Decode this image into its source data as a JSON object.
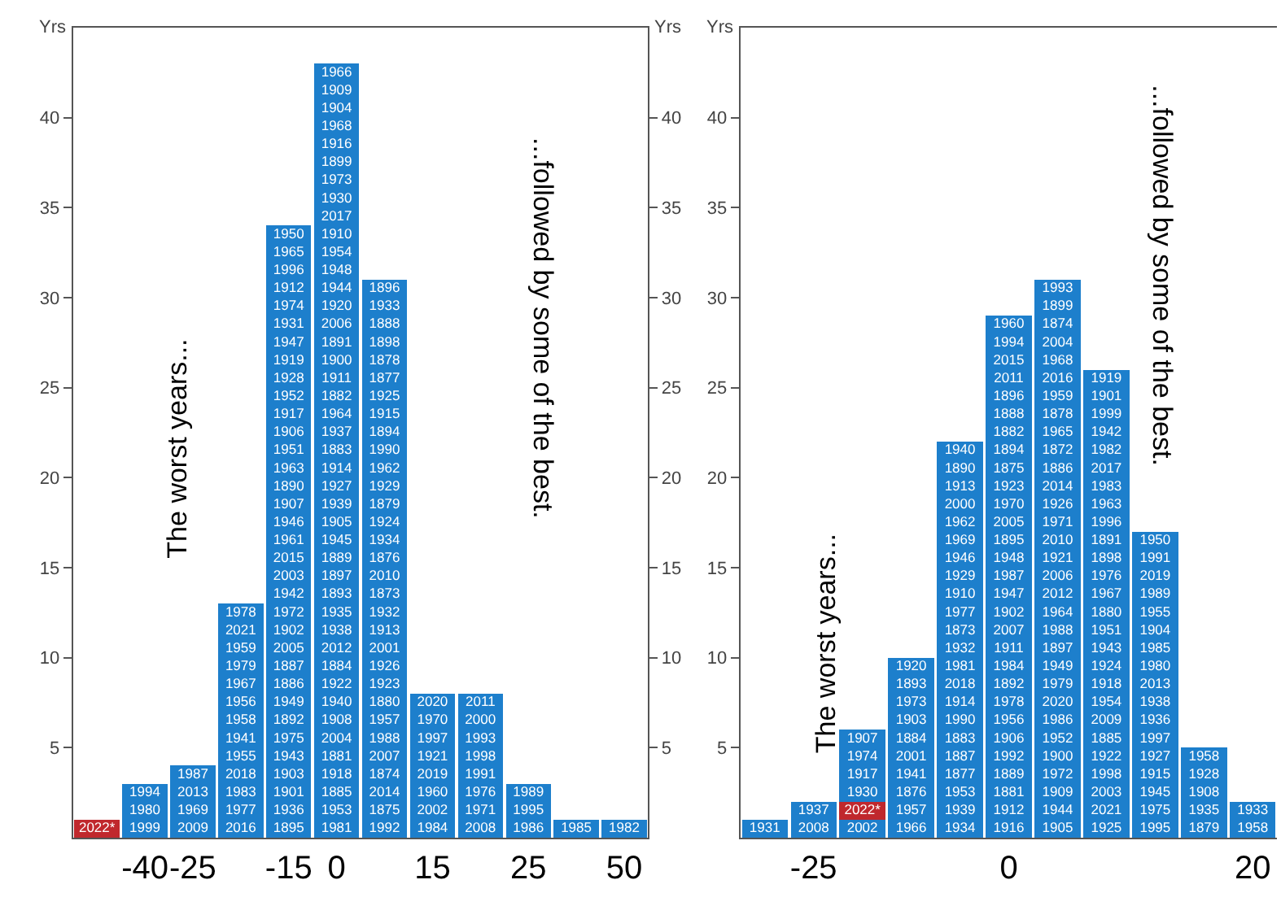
{
  "chart_data": [
    {
      "type": "bar",
      "stacked": true,
      "ylabel": "Yrs",
      "y2label": "Yrs",
      "ylim": [
        0,
        45
      ],
      "yticks": [
        5,
        10,
        15,
        20,
        25,
        30,
        35,
        40
      ],
      "y2lim": [
        0,
        45
      ],
      "y2ticks": [
        5,
        10,
        15,
        20,
        25,
        30,
        35,
        40
      ],
      "categories": [
        null,
        "-40",
        "-25",
        null,
        "-15",
        "0",
        null,
        "15",
        null,
        "25",
        null,
        "50"
      ],
      "series": [
        {
          "color": "#c0282d",
          "values": [
            1,
            null,
            null,
            null,
            null,
            null,
            null,
            null,
            null,
            null,
            null,
            null
          ]
        },
        {
          "color": "#1d7fcc",
          "values": [
            null,
            3,
            4,
            13,
            34,
            43,
            31,
            8,
            8,
            3,
            1,
            1
          ]
        }
      ],
      "annotations": [
        "The worst years...",
        "...followed by some of the best.",
        "2022*",
        "1994\n1980\n1999",
        "1987\n2013\n1969\n2009",
        "1978\n2021\n1959\n1979\n1967\n1956\n1958\n1941\n1955\n2018\n1983\n1977\n2016",
        "1950\n1965\n1996\n1912\n1974\n1931\n1947\n1919\n1928\n1952\n1917\n1906\n1951\n1963\n1890\n1907\n1946\n1961\n2015\n2003\n1942\n1972\n1902\n2005\n1887\n1886\n1949\n1892\n1975\n1943\n1903\n1901\n1936\n1895",
        "1966\n1909\n1904\n1968\n1916\n1899\n1973\n1930\n2017\n1910\n1954\n1948\n1944\n1920\n2006\n1891\n1900\n1911\n1882\n1964\n1937\n1883\n1914\n1927\n1939\n1905\n1945\n1889\n1897\n1893\n1935\n1938\n2012\n1884\n1922\n1940\n1908\n2004\n1881\n1918\n1885\n1953\n1981",
        "1896\n1933\n1888\n1898\n1878\n1877\n1925\n1915\n1894\n1990\n1962\n1929\n1879\n1924\n1934\n1876\n2010\n1873\n1932\n1913\n2001\n1926\n1923\n1880\n1957\n1988\n2007\n1874\n2014\n1875\n1992",
        "2020\n1970\n1997\n1921\n2019\n1960\n2002\n1984",
        "2011\n2000\n1993\n1998\n1991\n1976\n1971\n2008",
        "1989\n1995\n1986",
        "1985",
        "1982"
      ]
    },
    {
      "type": "bar",
      "stacked": true,
      "ylabel": "Yrs",
      "ylim": [
        0,
        45
      ],
      "yticks": [
        5,
        10,
        15,
        20,
        25,
        30,
        35,
        40
      ],
      "categories": [
        null,
        "-25",
        null,
        null,
        null,
        "0",
        null,
        null,
        null,
        null,
        "20"
      ],
      "series": [
        {
          "color": "#1d7fcc",
          "values": [
            1,
            2,
            1,
            10,
            22,
            29,
            31,
            26,
            17,
            5,
            2
          ]
        },
        {
          "color": "#c0282d",
          "values": [
            null,
            null,
            1,
            null,
            null,
            null,
            null,
            null,
            null,
            null,
            null
          ]
        },
        {
          "color": "#1d7fcc",
          "values": [
            null,
            null,
            4,
            null,
            null,
            null,
            null,
            null,
            null,
            null,
            null
          ]
        }
      ],
      "annotations": [
        "The worst years...",
        "...followed by some of the best.",
        "1931",
        "1937\n2008",
        "2002",
        "1920\n1893\n1973\n1903\n1884\n2001\n1941\n1876\n1957\n1966",
        "1940\n1890\n1913\n2000\n1962\n1969\n1946\n1929\n1910\n1977\n1873\n1932\n1981\n2018\n1914\n1990\n1883\n1887\n1877\n1953\n1939\n1934",
        "1960\n1994\n2015\n2011\n1896\n1888\n1882\n1894\n1875\n1923\n1970\n2005\n1895\n1948\n1987\n1947\n1902\n2007\n1911\n1984\n1892\n1978\n1956\n1906\n1992\n1889\n1881\n1912\n1916",
        "1993\n1899\n1874\n2004\n1968\n2016\n1959\n1878\n1965\n1872\n1886\n2014\n1926\n1971\n2010\n1921\n2006\n2012\n1964\n1988\n1897\n1949\n1979\n2020\n1986\n1952\n1900\n1972\n1909\n1944\n1905",
        "1919\n1901\n1999\n1942\n1982\n2017\n1983\n1963\n1996\n1891\n1898\n1976\n1967\n1880\n1951\n1943\n1924\n1918\n1954\n2009\n1885\n1922\n1998\n2003\n2021\n1925",
        "1950\n1991\n2019\n1989\n1955\n1904\n1985\n1980\n2013\n1938\n1936\n1997\n1927\n1915\n1945\n1975\n1995",
        "1958\n1928\n1908\n1935\n1879",
        "1933\n1958",
        "2022*",
        "1907\n1974\n1917\n1930"
      ]
    }
  ]
}
